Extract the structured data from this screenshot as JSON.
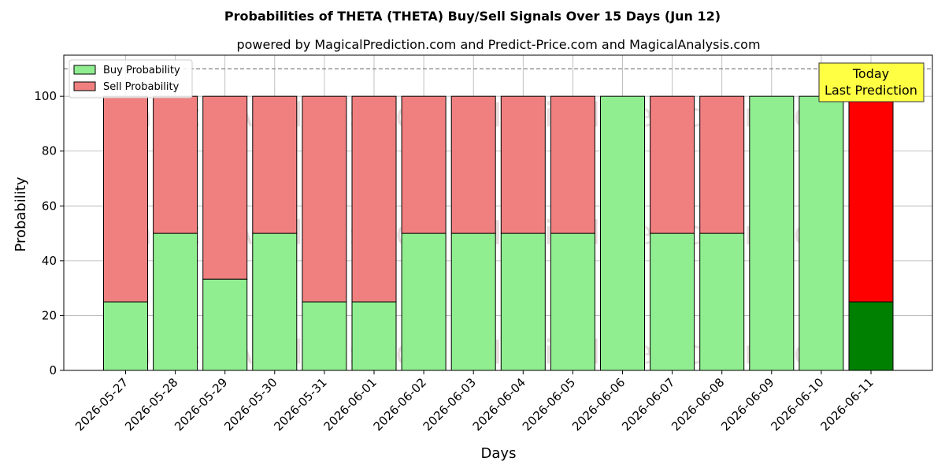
{
  "chart_data": {
    "type": "bar",
    "stacked": true,
    "title": "Probabilities of THETA (THETA) Buy/Sell Signals Over 15 Days (Jun 12)",
    "subtitle": "powered by MagicalPrediction.com and Predict-Price.com and MagicalAnalysis.com",
    "xlabel": "Days",
    "ylabel": "Probability",
    "ylim": [
      0,
      115
    ],
    "yticks": [
      0,
      20,
      40,
      60,
      80,
      100
    ],
    "grid": true,
    "legend_position": "top-left",
    "reference_line": 110,
    "categories": [
      "2026-05-27",
      "2026-05-28",
      "2026-05-29",
      "2026-05-30",
      "2026-05-31",
      "2026-06-01",
      "2026-06-02",
      "2026-06-03",
      "2026-06-04",
      "2026-06-05",
      "2026-06-06",
      "2026-06-07",
      "2026-06-08",
      "2026-06-09",
      "2026-06-10",
      "2026-06-11"
    ],
    "series": [
      {
        "name": "Buy Probability",
        "color": "#90ee90",
        "values": [
          25,
          50,
          33.3,
          50,
          25,
          25,
          50,
          50,
          50,
          50,
          100,
          50,
          50,
          100,
          100,
          25
        ]
      },
      {
        "name": "Sell Probability",
        "color": "#f08080",
        "values": [
          75,
          50,
          66.7,
          50,
          75,
          75,
          50,
          50,
          50,
          50,
          0,
          50,
          50,
          0,
          0,
          75
        ]
      }
    ],
    "highlight": {
      "index": 15,
      "buy_color": "#008000",
      "sell_color": "#ff0000"
    },
    "annotation": {
      "line1": "Today",
      "line2": "Last Prediction",
      "color": "#ffff44"
    },
    "watermarks": [
      "MagicalAnalysis.com",
      "MagicalPrediction.com"
    ]
  }
}
